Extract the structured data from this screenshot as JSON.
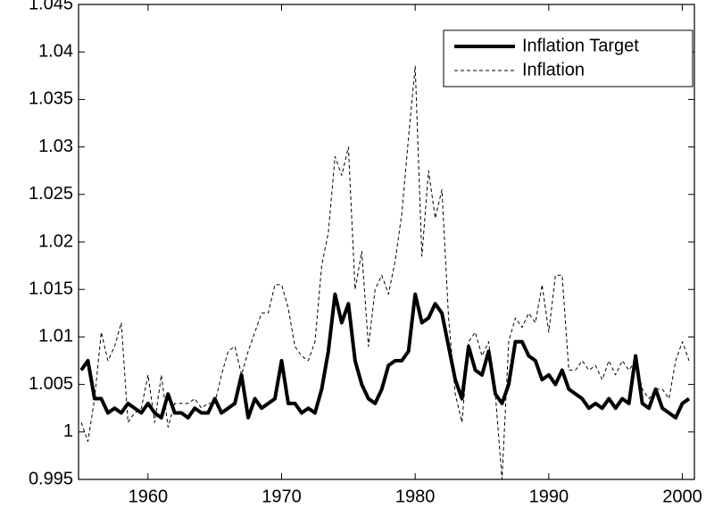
{
  "chart_data": {
    "type": "line",
    "x": [
      1955,
      1955.5,
      1956,
      1956.5,
      1957,
      1957.5,
      1958,
      1958.5,
      1959,
      1959.5,
      1960,
      1960.5,
      1961,
      1961.5,
      1962,
      1962.5,
      1963,
      1963.5,
      1964,
      1964.5,
      1965,
      1965.5,
      1966,
      1966.5,
      1967,
      1967.5,
      1968,
      1968.5,
      1969,
      1969.5,
      1970,
      1970.5,
      1971,
      1971.5,
      1972,
      1972.5,
      1973,
      1973.5,
      1974,
      1974.5,
      1975,
      1975.5,
      1976,
      1976.5,
      1977,
      1977.5,
      1978,
      1978.5,
      1979,
      1979.5,
      1980,
      1980.5,
      1981,
      1981.5,
      1982,
      1982.5,
      1983,
      1983.5,
      1984,
      1984.5,
      1985,
      1985.5,
      1986,
      1986.5,
      1987,
      1987.5,
      1988,
      1988.5,
      1989,
      1989.5,
      1990,
      1990.5,
      1991,
      1991.5,
      1992,
      1992.5,
      1993,
      1993.5,
      1994,
      1994.5,
      1995,
      1995.5,
      1996,
      1996.5,
      1997,
      1997.5,
      1998,
      1998.5,
      1999,
      1999.5,
      2000,
      2000.5
    ],
    "series": [
      {
        "name": "Inflation Target",
        "color": "#000000",
        "style": "solid",
        "width": 4,
        "values": [
          1.0065,
          1.0075,
          1.0035,
          1.0035,
          1.002,
          1.0025,
          1.002,
          1.003,
          1.0025,
          1.002,
          1.003,
          1.002,
          1.0015,
          1.004,
          1.002,
          1.002,
          1.0015,
          1.0025,
          1.002,
          1.002,
          1.0035,
          1.002,
          1.0025,
          1.003,
          1.006,
          1.0015,
          1.0035,
          1.0025,
          1.003,
          1.0035,
          1.0075,
          1.003,
          1.003,
          1.002,
          1.0025,
          1.002,
          1.0045,
          1.0085,
          1.0145,
          1.0115,
          1.0135,
          1.0075,
          1.005,
          1.0035,
          1.003,
          1.0045,
          1.007,
          1.0075,
          1.0075,
          1.0085,
          1.0145,
          1.0115,
          1.012,
          1.0135,
          1.0125,
          1.009,
          1.0055,
          1.0035,
          1.009,
          1.0065,
          1.006,
          1.0085,
          1.004,
          1.003,
          1.005,
          1.0095,
          1.0095,
          1.008,
          1.0075,
          1.0055,
          1.006,
          1.005,
          1.0065,
          1.0045,
          1.004,
          1.0035,
          1.0025,
          1.003,
          1.0025,
          1.0035,
          1.0025,
          1.0035,
          1.003,
          1.008,
          1.003,
          1.0025,
          1.0045,
          1.0025,
          1.002,
          1.0015,
          1.003,
          1.0035
        ]
      },
      {
        "name": "Inflation",
        "color": "#000000",
        "style": "dashed",
        "width": 1,
        "values": [
          1.001,
          0.999,
          1.0035,
          1.0105,
          1.0075,
          1.009,
          1.0115,
          1.001,
          1.002,
          1.0025,
          1.006,
          1.001,
          1.006,
          1.0005,
          1.003,
          1.003,
          1.003,
          1.0035,
          1.0025,
          1.003,
          1.003,
          1.006,
          1.0085,
          1.009,
          1.006,
          1.0085,
          1.0105,
          1.0125,
          1.0125,
          1.0155,
          1.0155,
          1.013,
          1.009,
          1.008,
          1.0075,
          1.0095,
          1.0175,
          1.021,
          1.029,
          1.027,
          1.03,
          1.015,
          1.019,
          1.009,
          1.015,
          1.0165,
          1.0145,
          1.018,
          1.023,
          1.031,
          1.0385,
          1.0185,
          1.0275,
          1.0225,
          1.0255,
          1.012,
          1.004,
          1.001,
          1.0095,
          1.0105,
          1.008,
          1.0095,
          1.004,
          0.995,
          1.0095,
          1.012,
          1.011,
          1.0125,
          1.0115,
          1.0155,
          1.0105,
          1.0165,
          1.0165,
          1.0065,
          1.0065,
          1.0075,
          1.0065,
          1.007,
          1.0055,
          1.0075,
          1.006,
          1.0075,
          1.0065,
          1.0075,
          1.0045,
          1.0035,
          1.0045,
          1.0045,
          1.0035,
          1.0075,
          1.0095,
          1.0075
        ]
      }
    ],
    "xlim": [
      1954.8,
      2000.9
    ],
    "xticks": [
      1960,
      1970,
      1980,
      1990,
      2000
    ],
    "ylim": [
      0.995,
      1.045
    ],
    "yticks": [
      0.995,
      1,
      1.005,
      1.01,
      1.015,
      1.02,
      1.025,
      1.03,
      1.035,
      1.04,
      1.045
    ],
    "legend": "upper right"
  }
}
